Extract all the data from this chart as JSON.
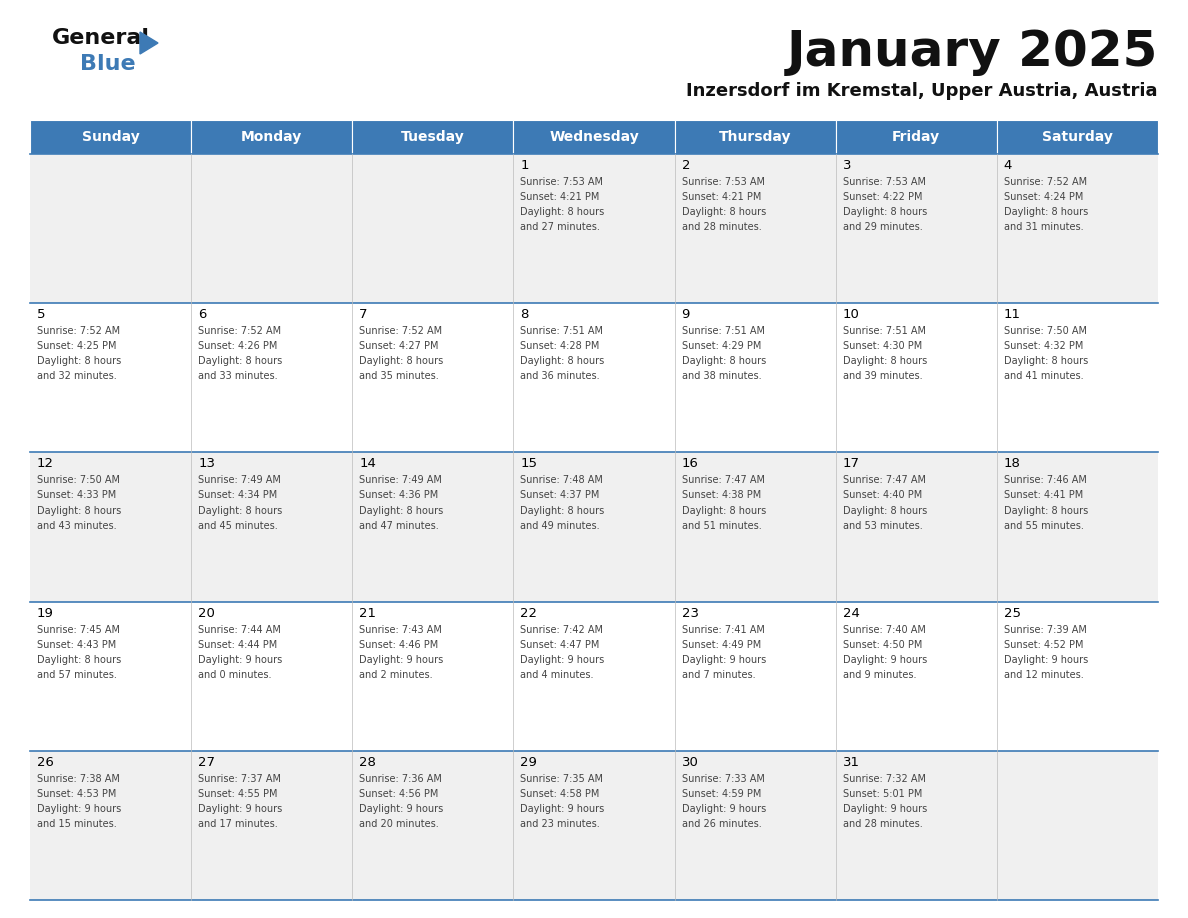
{
  "title": "January 2025",
  "subtitle": "Inzersdorf im Kremstal, Upper Austria, Austria",
  "header_bg": "#3d7ab5",
  "header_text": "#ffffff",
  "days_of_week": [
    "Sunday",
    "Monday",
    "Tuesday",
    "Wednesday",
    "Thursday",
    "Friday",
    "Saturday"
  ],
  "row_bg_odd": "#f0f0f0",
  "row_bg_even": "#ffffff",
  "cell_border_color": "#3d7ab5",
  "day_num_color": "#000000",
  "info_color": "#444444",
  "title_fontsize": 36,
  "subtitle_fontsize": 13,
  "dow_fontsize": 10,
  "day_num_fontsize": 9.5,
  "info_fontsize": 7.0,
  "calendar": [
    [
      {
        "day": null
      },
      {
        "day": null
      },
      {
        "day": null
      },
      {
        "day": 1,
        "sunrise": "7:53 AM",
        "sunset": "4:21 PM",
        "daylight": "8 hours",
        "daylight2": "and 27 minutes."
      },
      {
        "day": 2,
        "sunrise": "7:53 AM",
        "sunset": "4:21 PM",
        "daylight": "8 hours",
        "daylight2": "and 28 minutes."
      },
      {
        "day": 3,
        "sunrise": "7:53 AM",
        "sunset": "4:22 PM",
        "daylight": "8 hours",
        "daylight2": "and 29 minutes."
      },
      {
        "day": 4,
        "sunrise": "7:52 AM",
        "sunset": "4:24 PM",
        "daylight": "8 hours",
        "daylight2": "and 31 minutes."
      }
    ],
    [
      {
        "day": 5,
        "sunrise": "7:52 AM",
        "sunset": "4:25 PM",
        "daylight": "8 hours",
        "daylight2": "and 32 minutes."
      },
      {
        "day": 6,
        "sunrise": "7:52 AM",
        "sunset": "4:26 PM",
        "daylight": "8 hours",
        "daylight2": "and 33 minutes."
      },
      {
        "day": 7,
        "sunrise": "7:52 AM",
        "sunset": "4:27 PM",
        "daylight": "8 hours",
        "daylight2": "and 35 minutes."
      },
      {
        "day": 8,
        "sunrise": "7:51 AM",
        "sunset": "4:28 PM",
        "daylight": "8 hours",
        "daylight2": "and 36 minutes."
      },
      {
        "day": 9,
        "sunrise": "7:51 AM",
        "sunset": "4:29 PM",
        "daylight": "8 hours",
        "daylight2": "and 38 minutes."
      },
      {
        "day": 10,
        "sunrise": "7:51 AM",
        "sunset": "4:30 PM",
        "daylight": "8 hours",
        "daylight2": "and 39 minutes."
      },
      {
        "day": 11,
        "sunrise": "7:50 AM",
        "sunset": "4:32 PM",
        "daylight": "8 hours",
        "daylight2": "and 41 minutes."
      }
    ],
    [
      {
        "day": 12,
        "sunrise": "7:50 AM",
        "sunset": "4:33 PM",
        "daylight": "8 hours",
        "daylight2": "and 43 minutes."
      },
      {
        "day": 13,
        "sunrise": "7:49 AM",
        "sunset": "4:34 PM",
        "daylight": "8 hours",
        "daylight2": "and 45 minutes."
      },
      {
        "day": 14,
        "sunrise": "7:49 AM",
        "sunset": "4:36 PM",
        "daylight": "8 hours",
        "daylight2": "and 47 minutes."
      },
      {
        "day": 15,
        "sunrise": "7:48 AM",
        "sunset": "4:37 PM",
        "daylight": "8 hours",
        "daylight2": "and 49 minutes."
      },
      {
        "day": 16,
        "sunrise": "7:47 AM",
        "sunset": "4:38 PM",
        "daylight": "8 hours",
        "daylight2": "and 51 minutes."
      },
      {
        "day": 17,
        "sunrise": "7:47 AM",
        "sunset": "4:40 PM",
        "daylight": "8 hours",
        "daylight2": "and 53 minutes."
      },
      {
        "day": 18,
        "sunrise": "7:46 AM",
        "sunset": "4:41 PM",
        "daylight": "8 hours",
        "daylight2": "and 55 minutes."
      }
    ],
    [
      {
        "day": 19,
        "sunrise": "7:45 AM",
        "sunset": "4:43 PM",
        "daylight": "8 hours",
        "daylight2": "and 57 minutes."
      },
      {
        "day": 20,
        "sunrise": "7:44 AM",
        "sunset": "4:44 PM",
        "daylight": "9 hours",
        "daylight2": "and 0 minutes."
      },
      {
        "day": 21,
        "sunrise": "7:43 AM",
        "sunset": "4:46 PM",
        "daylight": "9 hours",
        "daylight2": "and 2 minutes."
      },
      {
        "day": 22,
        "sunrise": "7:42 AM",
        "sunset": "4:47 PM",
        "daylight": "9 hours",
        "daylight2": "and 4 minutes."
      },
      {
        "day": 23,
        "sunrise": "7:41 AM",
        "sunset": "4:49 PM",
        "daylight": "9 hours",
        "daylight2": "and 7 minutes."
      },
      {
        "day": 24,
        "sunrise": "7:40 AM",
        "sunset": "4:50 PM",
        "daylight": "9 hours",
        "daylight2": "and 9 minutes."
      },
      {
        "day": 25,
        "sunrise": "7:39 AM",
        "sunset": "4:52 PM",
        "daylight": "9 hours",
        "daylight2": "and 12 minutes."
      }
    ],
    [
      {
        "day": 26,
        "sunrise": "7:38 AM",
        "sunset": "4:53 PM",
        "daylight": "9 hours",
        "daylight2": "and 15 minutes."
      },
      {
        "day": 27,
        "sunrise": "7:37 AM",
        "sunset": "4:55 PM",
        "daylight": "9 hours",
        "daylight2": "and 17 minutes."
      },
      {
        "day": 28,
        "sunrise": "7:36 AM",
        "sunset": "4:56 PM",
        "daylight": "9 hours",
        "daylight2": "and 20 minutes."
      },
      {
        "day": 29,
        "sunrise": "7:35 AM",
        "sunset": "4:58 PM",
        "daylight": "9 hours",
        "daylight2": "and 23 minutes."
      },
      {
        "day": 30,
        "sunrise": "7:33 AM",
        "sunset": "4:59 PM",
        "daylight": "9 hours",
        "daylight2": "and 26 minutes."
      },
      {
        "day": 31,
        "sunrise": "7:32 AM",
        "sunset": "5:01 PM",
        "daylight": "9 hours",
        "daylight2": "and 28 minutes."
      },
      {
        "day": null
      }
    ]
  ]
}
